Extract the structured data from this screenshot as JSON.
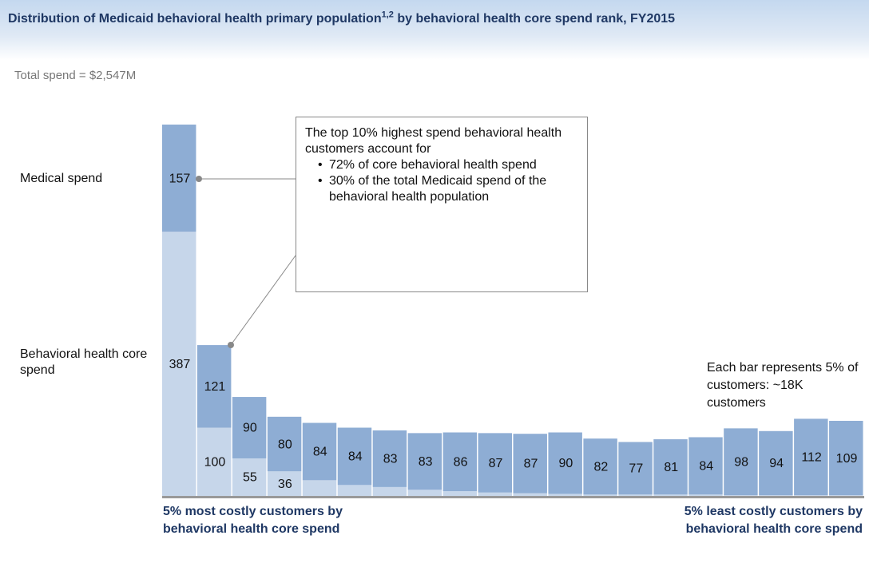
{
  "chart_data": {
    "type": "bar",
    "stacked": true,
    "title": "Distribution of Medicaid behavioral health primary population",
    "title_superscript": "1,2",
    "title_continued": "by behavioral health core spend rank, FY2015",
    "subtitle": "Total spend = $2,547M",
    "categories": [
      null,
      null,
      null,
      null,
      null,
      null,
      null,
      null,
      null,
      null,
      null,
      null,
      null,
      null,
      null,
      null,
      null,
      null,
      null,
      null
    ],
    "series": [
      {
        "name": "Behavioral health core spend",
        "color": "#c6d6ea",
        "values": [
          387,
          100,
          55,
          36,
          23,
          16,
          13,
          9,
          7,
          5,
          4,
          3,
          2,
          2,
          2,
          2,
          1,
          1,
          1,
          1
        ],
        "value_labels": [
          "387",
          "100",
          "55",
          "36",
          null,
          null,
          null,
          null,
          null,
          null,
          null,
          null,
          null,
          null,
          null,
          null,
          null,
          null,
          null,
          null
        ]
      },
      {
        "name": "Medical spend",
        "color": "#8eadd4",
        "values": [
          157,
          121,
          90,
          80,
          84,
          84,
          83,
          83,
          86,
          87,
          87,
          90,
          82,
          77,
          81,
          84,
          98,
          94,
          112,
          109
        ]
      }
    ],
    "x_labels": [
      "5% most costly customers by behavioral health core spend",
      "5% least costly customers by behavioral health core spend"
    ],
    "callout": {
      "intro": "The top 10% highest spend behavioral health customers account for",
      "bullets": [
        "72% of  core behavioral health spend",
        "30% of the total Medicaid spend of the behavioral health population"
      ]
    },
    "note": "Each bar represents 5% of customers: ~18K customers"
  }
}
